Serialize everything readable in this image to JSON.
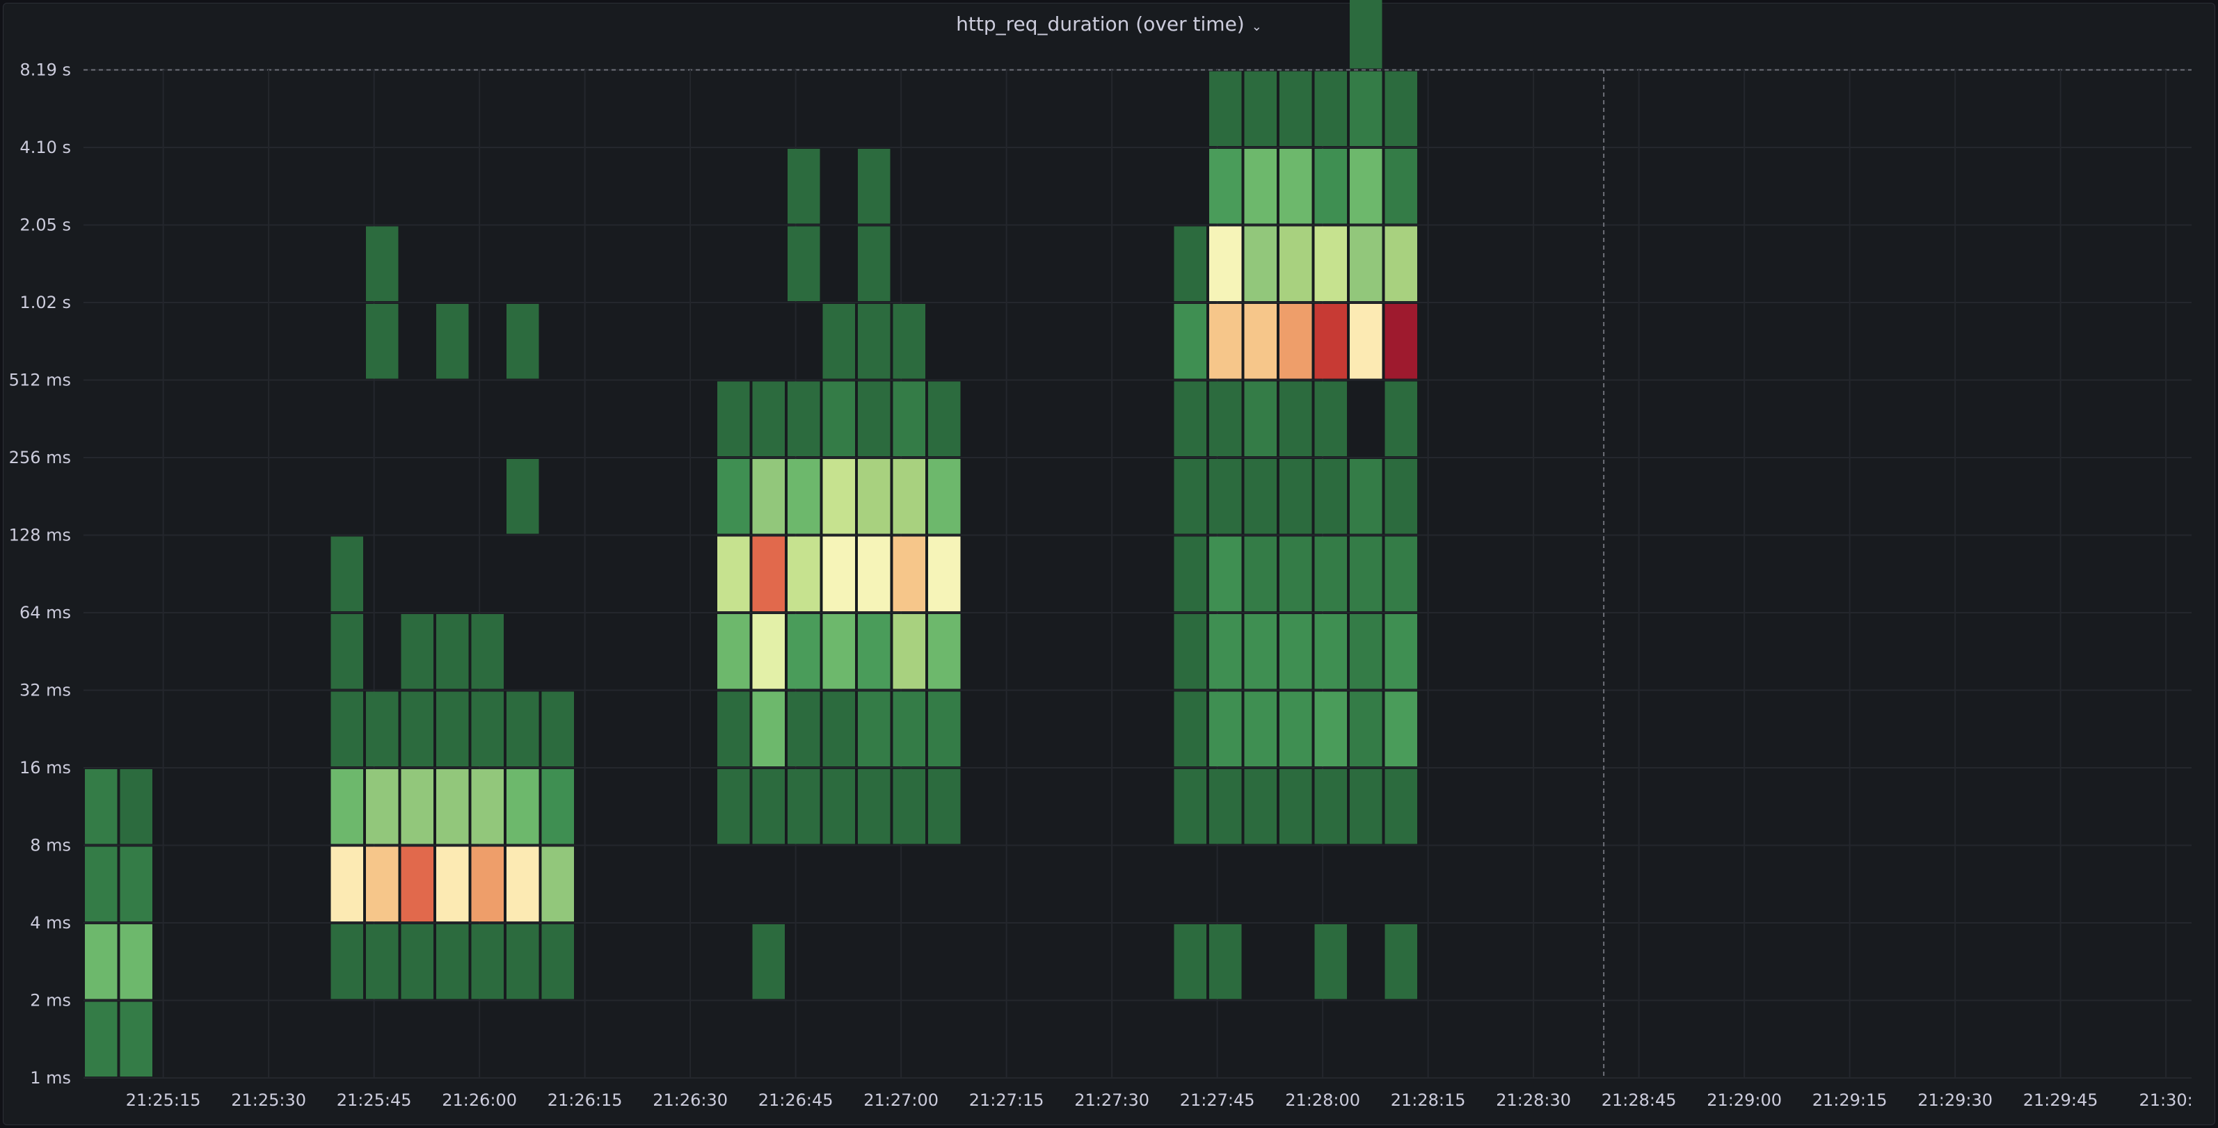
{
  "panel": {
    "title": "http_req_duration (over time)",
    "menu_icon": "chevron-down-icon"
  },
  "chart_data": {
    "type": "heatmap",
    "title": "http_req_duration (over time)",
    "y_buckets": [
      "1 ms",
      "2 ms",
      "4 ms",
      "8 ms",
      "16 ms",
      "32 ms",
      "64 ms",
      "128 ms",
      "256 ms",
      "512 ms",
      "1.02 s",
      "2.05 s",
      "4.10 s",
      "8.19 s"
    ],
    "x_tick_labels": [
      "21:25:15",
      "21:25:30",
      "21:25:45",
      "21:26:00",
      "21:26:15",
      "21:26:30",
      "21:26:45",
      "21:27:00",
      "21:27:15",
      "21:27:30",
      "21:27:45",
      "21:28:00",
      "21:28:15",
      "21:28:30",
      "21:28:45",
      "21:29:00",
      "21:29:15",
      "21:29:30",
      "21:29:45",
      "21:30:"
    ],
    "x_range": [
      "21:25:05",
      "21:30:05"
    ],
    "time_step_seconds": 5,
    "color_scale": [
      "#2c6b3e",
      "#347c47",
      "#3f8f52",
      "#4a9c5a",
      "#6db86c",
      "#92c77b",
      "#a8d17f",
      "#c6e28f",
      "#e3f0a8",
      "#f6f4b8",
      "#fceab3",
      "#f6c68a",
      "#ee9e6a",
      "#e1694c",
      "#c73a34",
      "#9e1a2e"
    ],
    "cells": [
      {
        "t": "21:25:05",
        "b": 0,
        "v": 1
      },
      {
        "t": "21:25:05",
        "b": 1,
        "v": 4
      },
      {
        "t": "21:25:05",
        "b": 2,
        "v": 1
      },
      {
        "t": "21:25:05",
        "b": 3,
        "v": 1
      },
      {
        "t": "21:25:10",
        "b": 0,
        "v": 1
      },
      {
        "t": "21:25:10",
        "b": 1,
        "v": 4
      },
      {
        "t": "21:25:10",
        "b": 2,
        "v": 1
      },
      {
        "t": "21:25:10",
        "b": 3,
        "v": 0
      },
      {
        "t": "21:25:40",
        "b": 1,
        "v": 0
      },
      {
        "t": "21:25:40",
        "b": 2,
        "v": 10
      },
      {
        "t": "21:25:40",
        "b": 3,
        "v": 4
      },
      {
        "t": "21:25:40",
        "b": 4,
        "v": 0
      },
      {
        "t": "21:25:40",
        "b": 5,
        "v": 0
      },
      {
        "t": "21:25:40",
        "b": 6,
        "v": 0
      },
      {
        "t": "21:25:45",
        "b": 1,
        "v": 0
      },
      {
        "t": "21:25:45",
        "b": 2,
        "v": 11
      },
      {
        "t": "21:25:45",
        "b": 3,
        "v": 5
      },
      {
        "t": "21:25:45",
        "b": 4,
        "v": 0
      },
      {
        "t": "21:25:45",
        "b": 9,
        "v": 0
      },
      {
        "t": "21:25:45",
        "b": 10,
        "v": 0
      },
      {
        "t": "21:25:50",
        "b": 1,
        "v": 0
      },
      {
        "t": "21:25:50",
        "b": 2,
        "v": 13
      },
      {
        "t": "21:25:50",
        "b": 3,
        "v": 5
      },
      {
        "t": "21:25:50",
        "b": 4,
        "v": 0
      },
      {
        "t": "21:25:50",
        "b": 5,
        "v": 0
      },
      {
        "t": "21:25:55",
        "b": 1,
        "v": 0
      },
      {
        "t": "21:25:55",
        "b": 2,
        "v": 10
      },
      {
        "t": "21:25:55",
        "b": 3,
        "v": 5
      },
      {
        "t": "21:25:55",
        "b": 4,
        "v": 0
      },
      {
        "t": "21:25:55",
        "b": 5,
        "v": 0
      },
      {
        "t": "21:25:55",
        "b": 9,
        "v": 0
      },
      {
        "t": "21:26:00",
        "b": 1,
        "v": 0
      },
      {
        "t": "21:26:00",
        "b": 2,
        "v": 12
      },
      {
        "t": "21:26:00",
        "b": 3,
        "v": 5
      },
      {
        "t": "21:26:00",
        "b": 4,
        "v": 0
      },
      {
        "t": "21:26:00",
        "b": 5,
        "v": 0
      },
      {
        "t": "21:26:05",
        "b": 1,
        "v": 0
      },
      {
        "t": "21:26:05",
        "b": 2,
        "v": 10
      },
      {
        "t": "21:26:05",
        "b": 3,
        "v": 4
      },
      {
        "t": "21:26:05",
        "b": 4,
        "v": 0
      },
      {
        "t": "21:26:05",
        "b": 7,
        "v": 0
      },
      {
        "t": "21:26:05",
        "b": 9,
        "v": 0
      },
      {
        "t": "21:26:10",
        "b": 1,
        "v": 0
      },
      {
        "t": "21:26:10",
        "b": 2,
        "v": 5
      },
      {
        "t": "21:26:10",
        "b": 3,
        "v": 2
      },
      {
        "t": "21:26:10",
        "b": 4,
        "v": 0
      },
      {
        "t": "21:26:35",
        "b": 3,
        "v": 0
      },
      {
        "t": "21:26:35",
        "b": 4,
        "v": 0
      },
      {
        "t": "21:26:35",
        "b": 5,
        "v": 4
      },
      {
        "t": "21:26:35",
        "b": 6,
        "v": 7
      },
      {
        "t": "21:26:35",
        "b": 7,
        "v": 2
      },
      {
        "t": "21:26:35",
        "b": 8,
        "v": 0
      },
      {
        "t": "21:26:40",
        "b": 1,
        "v": 0
      },
      {
        "t": "21:26:40",
        "b": 3,
        "v": 0
      },
      {
        "t": "21:26:40",
        "b": 4,
        "v": 4
      },
      {
        "t": "21:26:40",
        "b": 5,
        "v": 8
      },
      {
        "t": "21:26:40",
        "b": 6,
        "v": 13
      },
      {
        "t": "21:26:40",
        "b": 7,
        "v": 5
      },
      {
        "t": "21:26:40",
        "b": 8,
        "v": 0
      },
      {
        "t": "21:26:45",
        "b": 3,
        "v": 0
      },
      {
        "t": "21:26:45",
        "b": 4,
        "v": 0
      },
      {
        "t": "21:26:45",
        "b": 5,
        "v": 3
      },
      {
        "t": "21:26:45",
        "b": 6,
        "v": 7
      },
      {
        "t": "21:26:45",
        "b": 7,
        "v": 4
      },
      {
        "t": "21:26:45",
        "b": 8,
        "v": 0
      },
      {
        "t": "21:26:45",
        "b": 10,
        "v": 0
      },
      {
        "t": "21:26:45",
        "b": 11,
        "v": 0
      },
      {
        "t": "21:26:50",
        "b": 3,
        "v": 0
      },
      {
        "t": "21:26:50",
        "b": 4,
        "v": 0
      },
      {
        "t": "21:26:50",
        "b": 5,
        "v": 4
      },
      {
        "t": "21:26:50",
        "b": 6,
        "v": 9
      },
      {
        "t": "21:26:50",
        "b": 7,
        "v": 7
      },
      {
        "t": "21:26:50",
        "b": 8,
        "v": 1
      },
      {
        "t": "21:26:50",
        "b": 9,
        "v": 0
      },
      {
        "t": "21:26:55",
        "b": 3,
        "v": 0
      },
      {
        "t": "21:26:55",
        "b": 4,
        "v": 1
      },
      {
        "t": "21:26:55",
        "b": 5,
        "v": 3
      },
      {
        "t": "21:26:55",
        "b": 6,
        "v": 9
      },
      {
        "t": "21:26:55",
        "b": 7,
        "v": 6
      },
      {
        "t": "21:26:55",
        "b": 8,
        "v": 0
      },
      {
        "t": "21:26:55",
        "b": 9,
        "v": 0
      },
      {
        "t": "21:26:55",
        "b": 10,
        "v": 0
      },
      {
        "t": "21:26:55",
        "b": 11,
        "v": 0
      },
      {
        "t": "21:27:00",
        "b": 3,
        "v": 0
      },
      {
        "t": "21:27:00",
        "b": 4,
        "v": 1
      },
      {
        "t": "21:27:00",
        "b": 5,
        "v": 6
      },
      {
        "t": "21:27:00",
        "b": 6,
        "v": 11
      },
      {
        "t": "21:27:00",
        "b": 7,
        "v": 6
      },
      {
        "t": "21:27:00",
        "b": 8,
        "v": 1
      },
      {
        "t": "21:27:00",
        "b": 9,
        "v": 0
      },
      {
        "t": "21:27:05",
        "b": 3,
        "v": 0
      },
      {
        "t": "21:27:05",
        "b": 4,
        "v": 1
      },
      {
        "t": "21:27:05",
        "b": 5,
        "v": 4
      },
      {
        "t": "21:27:05",
        "b": 6,
        "v": 9
      },
      {
        "t": "21:27:05",
        "b": 7,
        "v": 4
      },
      {
        "t": "21:27:05",
        "b": 8,
        "v": 0
      },
      {
        "t": "21:27:40",
        "b": 1,
        "v": 0
      },
      {
        "t": "21:27:40",
        "b": 3,
        "v": 0
      },
      {
        "t": "21:27:40",
        "b": 4,
        "v": 0
      },
      {
        "t": "21:27:40",
        "b": 5,
        "v": 0
      },
      {
        "t": "21:27:40",
        "b": 6,
        "v": 0
      },
      {
        "t": "21:27:40",
        "b": 7,
        "v": 0
      },
      {
        "t": "21:27:40",
        "b": 8,
        "v": 0
      },
      {
        "t": "21:27:40",
        "b": 9,
        "v": 2
      },
      {
        "t": "21:27:40",
        "b": 10,
        "v": 0
      },
      {
        "t": "21:27:45",
        "b": 1,
        "v": 0
      },
      {
        "t": "21:27:45",
        "b": 3,
        "v": 0
      },
      {
        "t": "21:27:45",
        "b": 4,
        "v": 2
      },
      {
        "t": "21:27:45",
        "b": 5,
        "v": 2
      },
      {
        "t": "21:27:45",
        "b": 6,
        "v": 2
      },
      {
        "t": "21:27:45",
        "b": 7,
        "v": 0
      },
      {
        "t": "21:27:45",
        "b": 8,
        "v": 0
      },
      {
        "t": "21:27:45",
        "b": 9,
        "v": 11
      },
      {
        "t": "21:27:45",
        "b": 10,
        "v": 9
      },
      {
        "t": "21:27:45",
        "b": 11,
        "v": 3
      },
      {
        "t": "21:27:45",
        "b": 12,
        "v": 0
      },
      {
        "t": "21:27:50",
        "b": 3,
        "v": 0
      },
      {
        "t": "21:27:50",
        "b": 4,
        "v": 2
      },
      {
        "t": "21:27:50",
        "b": 5,
        "v": 2
      },
      {
        "t": "21:27:50",
        "b": 6,
        "v": 1
      },
      {
        "t": "21:27:50",
        "b": 7,
        "v": 0
      },
      {
        "t": "21:27:50",
        "b": 8,
        "v": 1
      },
      {
        "t": "21:27:50",
        "b": 9,
        "v": 11
      },
      {
        "t": "21:27:50",
        "b": 10,
        "v": 5
      },
      {
        "t": "21:27:50",
        "b": 11,
        "v": 4
      },
      {
        "t": "21:27:50",
        "b": 12,
        "v": 0
      },
      {
        "t": "21:27:55",
        "b": 3,
        "v": 0
      },
      {
        "t": "21:27:55",
        "b": 4,
        "v": 2
      },
      {
        "t": "21:27:55",
        "b": 5,
        "v": 2
      },
      {
        "t": "21:27:55",
        "b": 6,
        "v": 1
      },
      {
        "t": "21:27:55",
        "b": 7,
        "v": 0
      },
      {
        "t": "21:27:55",
        "b": 8,
        "v": 0
      },
      {
        "t": "21:27:55",
        "b": 9,
        "v": 12
      },
      {
        "t": "21:27:55",
        "b": 10,
        "v": 6
      },
      {
        "t": "21:27:55",
        "b": 11,
        "v": 4
      },
      {
        "t": "21:27:55",
        "b": 12,
        "v": 0
      },
      {
        "t": "21:28:00",
        "b": 1,
        "v": 0
      },
      {
        "t": "21:28:00",
        "b": 3,
        "v": 0
      },
      {
        "t": "21:28:00",
        "b": 4,
        "v": 3
      },
      {
        "t": "21:28:00",
        "b": 5,
        "v": 2
      },
      {
        "t": "21:28:00",
        "b": 6,
        "v": 1
      },
      {
        "t": "21:28:00",
        "b": 7,
        "v": 0
      },
      {
        "t": "21:28:00",
        "b": 8,
        "v": 0
      },
      {
        "t": "21:28:00",
        "b": 9,
        "v": 14
      },
      {
        "t": "21:28:00",
        "b": 10,
        "v": 7
      },
      {
        "t": "21:28:00",
        "b": 11,
        "v": 2
      },
      {
        "t": "21:28:00",
        "b": 12,
        "v": 0
      },
      {
        "t": "21:28:05",
        "b": 3,
        "v": 0
      },
      {
        "t": "21:28:05",
        "b": 4,
        "v": 1
      },
      {
        "t": "21:28:05",
        "b": 5,
        "v": 1
      },
      {
        "t": "21:28:05",
        "b": 6,
        "v": 1
      },
      {
        "t": "21:28:05",
        "b": 7,
        "v": 1
      },
      {
        "t": "21:28:05",
        "b": 9,
        "v": 10
      },
      {
        "t": "21:28:05",
        "b": 10,
        "v": 5
      },
      {
        "t": "21:28:05",
        "b": 11,
        "v": 4
      },
      {
        "t": "21:28:05",
        "b": 12,
        "v": 1
      },
      {
        "t": "21:28:05",
        "b": 13,
        "v": 0
      },
      {
        "t": "21:28:10",
        "b": 1,
        "v": 0
      },
      {
        "t": "21:28:10",
        "b": 3,
        "v": 0
      },
      {
        "t": "21:28:10",
        "b": 4,
        "v": 3
      },
      {
        "t": "21:28:10",
        "b": 5,
        "v": 2
      },
      {
        "t": "21:28:10",
        "b": 6,
        "v": 1
      },
      {
        "t": "21:28:10",
        "b": 7,
        "v": 0
      },
      {
        "t": "21:28:10",
        "b": 8,
        "v": 0
      },
      {
        "t": "21:28:10",
        "b": 9,
        "v": 15
      },
      {
        "t": "21:28:10",
        "b": 10,
        "v": 6
      },
      {
        "t": "21:28:10",
        "b": 11,
        "v": 1
      },
      {
        "t": "21:28:10",
        "b": 12,
        "v": 0
      }
    ],
    "annotations": [
      {
        "type": "vertical-dashed-line",
        "t": "21:28:40"
      }
    ],
    "grid": true
  }
}
